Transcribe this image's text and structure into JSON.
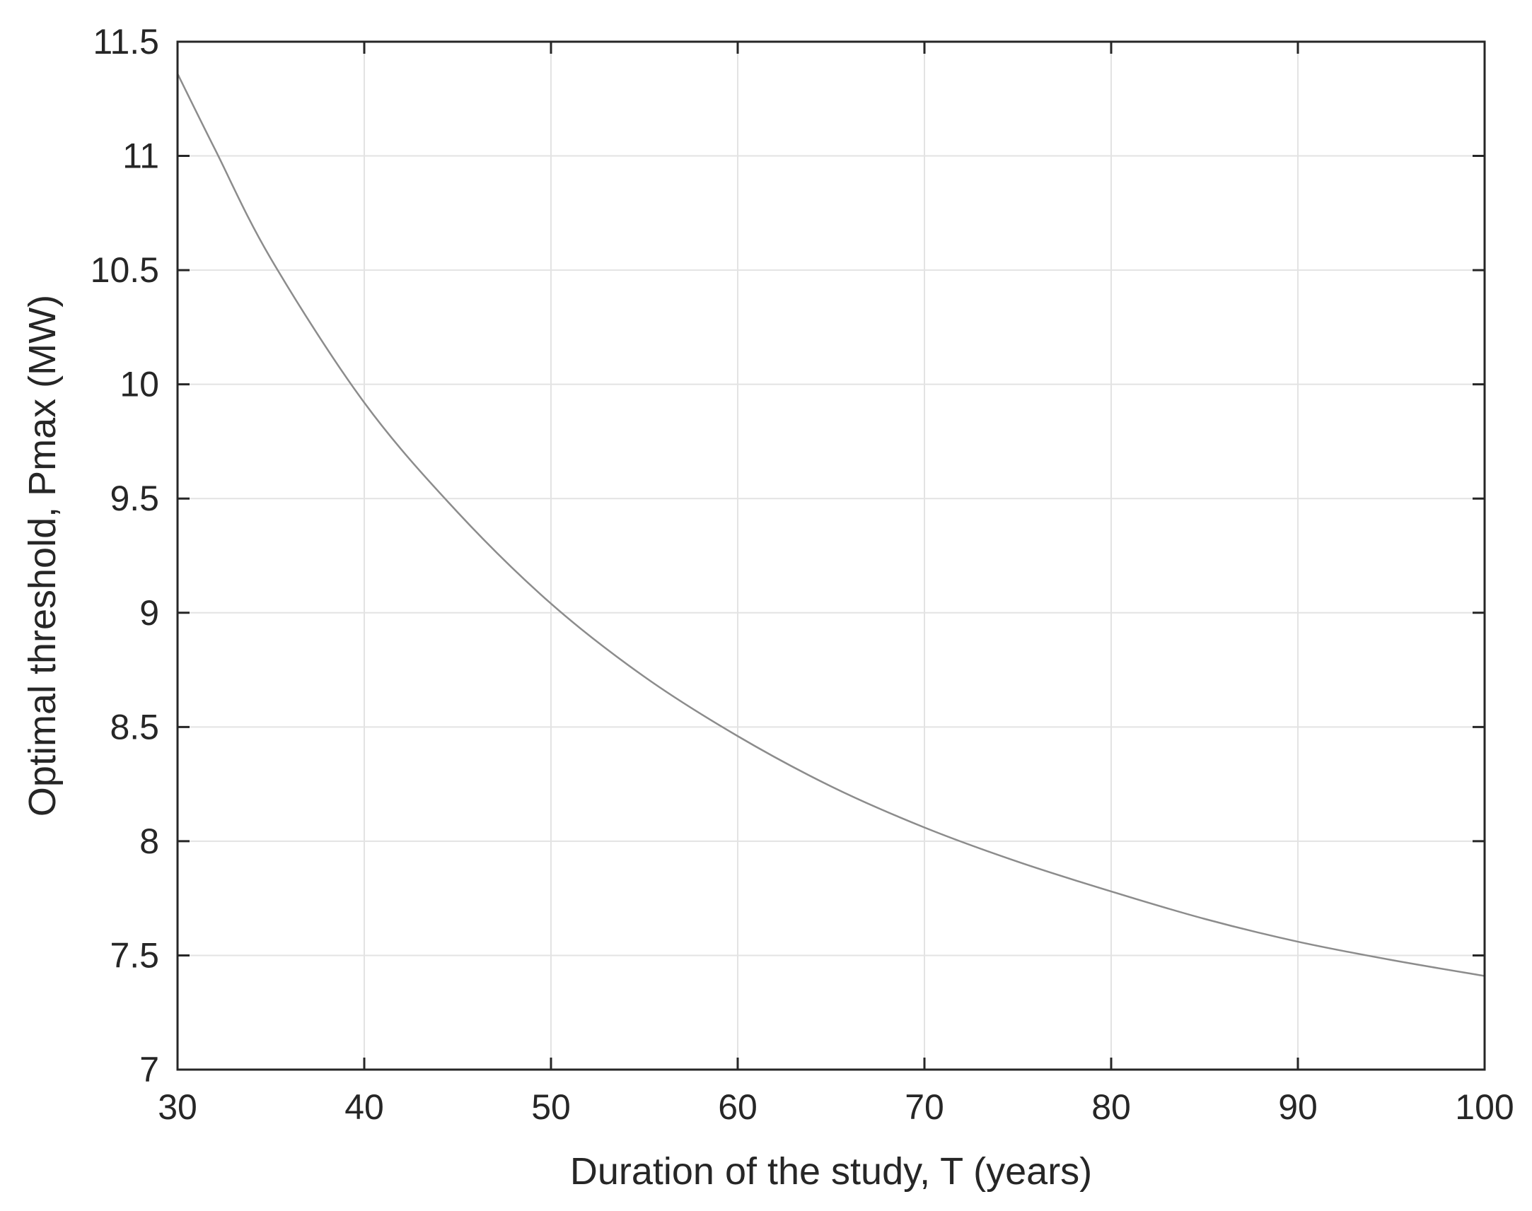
{
  "chart_data": {
    "type": "line",
    "xlabel": "Duration of the study, T (years)",
    "ylabel": "Optimal threshold, Pmax (MW)",
    "xlim": [
      30,
      100
    ],
    "ylim": [
      7,
      11.5
    ],
    "xticks": [
      30,
      40,
      50,
      60,
      70,
      80,
      90,
      100
    ],
    "yticks": [
      7,
      7.5,
      8,
      8.5,
      9,
      9.5,
      10,
      10.5,
      11,
      11.5
    ],
    "xtick_labels": [
      "30",
      "40",
      "50",
      "60",
      "70",
      "80",
      "90",
      "100"
    ],
    "ytick_labels": [
      "7",
      "7.5",
      "8",
      "8.5",
      "9",
      "9.5",
      "10",
      "10.5",
      "11",
      "11.5"
    ],
    "grid": true,
    "colors": {
      "line": "#8c8c8c",
      "grid": "#e3e3e3",
      "axes": "#262626"
    },
    "series": [
      {
        "x": [
          30,
          32,
          35,
          40,
          45,
          50,
          55,
          60,
          65,
          70,
          75,
          80,
          85,
          90,
          95,
          100
        ],
        "y": [
          11.36,
          11.03,
          10.55,
          9.92,
          9.44,
          9.04,
          8.72,
          8.46,
          8.24,
          8.06,
          7.91,
          7.78,
          7.66,
          7.56,
          7.48,
          7.41
        ]
      }
    ]
  }
}
